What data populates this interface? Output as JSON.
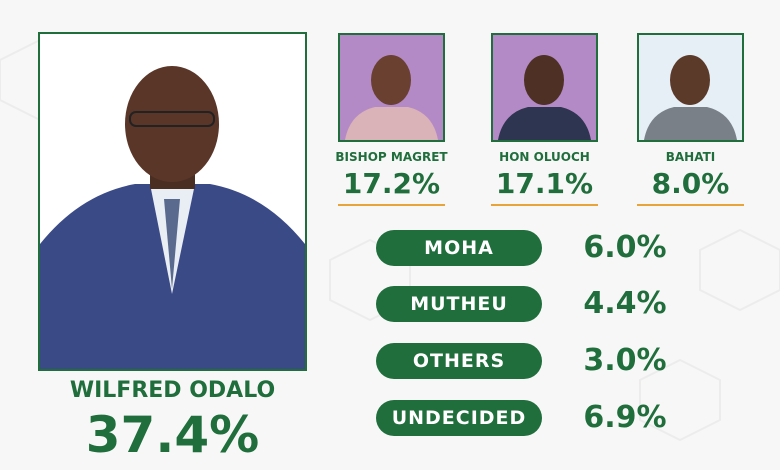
{
  "main": {
    "name": "WILFRED ODALO",
    "percent": "37.4%"
  },
  "candidates": [
    {
      "name": "BISHOP MAGRET",
      "percent": "17.2%"
    },
    {
      "name": "HON OLUOCH",
      "percent": "17.1%"
    },
    {
      "name": "BAHATI",
      "percent": "8.0%"
    }
  ],
  "others": [
    {
      "label": "MOHA",
      "percent": "6.0%"
    },
    {
      "label": "MUTHEU",
      "percent": "4.4%"
    },
    {
      "label": "OTHERS",
      "percent": "3.0%"
    },
    {
      "label": "UNDECIDED",
      "percent": "6.9%"
    }
  ]
}
